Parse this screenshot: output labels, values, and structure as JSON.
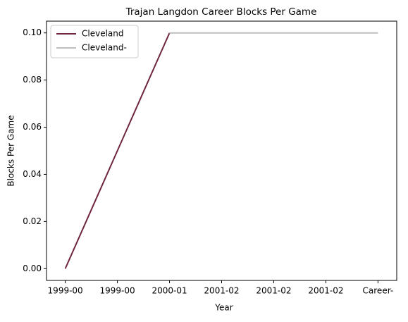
{
  "chart_data": {
    "type": "line",
    "title": "Trajan Langdon Career Blocks Per Game",
    "xlabel": "Year",
    "ylabel": "Blocks Per Game",
    "categories": [
      "1999-00",
      "1999-00",
      "2000-01",
      "2001-02",
      "2001-02",
      "2001-02",
      "Career-"
    ],
    "series": [
      {
        "name": "Cleveland",
        "color": "#6f263d",
        "values": [
          0,
          0.05,
          0.1,
          null,
          null,
          null,
          null
        ]
      },
      {
        "name": "Cleveland-",
        "color": "#bebebe",
        "values": [
          null,
          null,
          0.1,
          0.1,
          0.1,
          0.1,
          0.1
        ]
      }
    ],
    "ylim": [
      -0.005,
      0.105
    ],
    "yticks": [
      {
        "value": 0,
        "label": "0.00"
      },
      {
        "value": 0.02,
        "label": "0.02"
      },
      {
        "value": 0.04,
        "label": "0.04"
      },
      {
        "value": 0.06,
        "label": "0.06"
      },
      {
        "value": 0.08,
        "label": "0.08"
      },
      {
        "value": 0.1,
        "label": "0.10"
      }
    ],
    "legend": "upper left"
  }
}
